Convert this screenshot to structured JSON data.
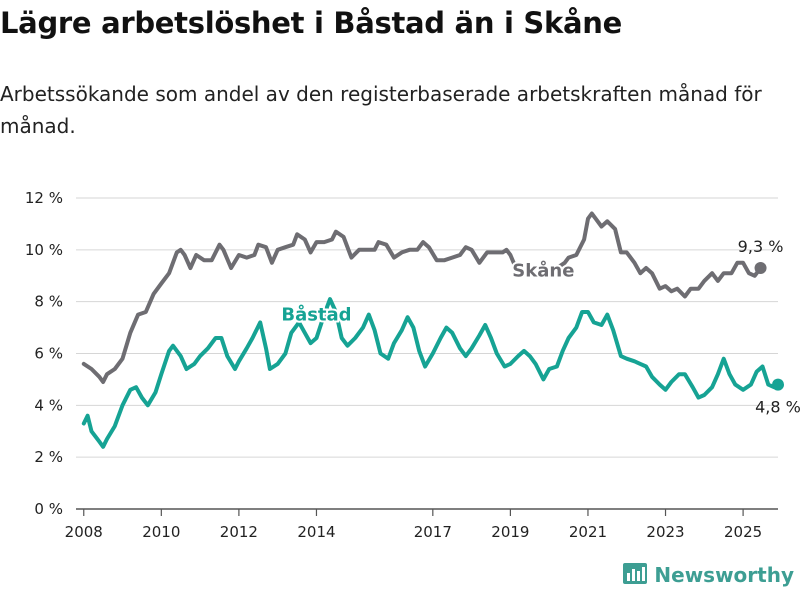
{
  "title": "Lägre arbetslöshet i Båstad än i Skåne",
  "subtitle": "Arbetssökande som andel av den registerbaserade arbetskraften månad för månad.",
  "brand": {
    "name": "Newsworthy",
    "icon": "bar-chart-logo-icon"
  },
  "colors": {
    "skane": "#6e6d72",
    "bastad": "#16a394",
    "brand": "#3d9e93"
  },
  "chart_data": {
    "type": "line",
    "title": "Lägre arbetslöshet i Båstad än i Skåne",
    "subtitle": "Arbetssökande som andel av den registerbaserade arbetskraften månad för månad.",
    "xlabel": "",
    "ylabel": "",
    "xlim": [
      2007.8,
      2025.9
    ],
    "ylim": [
      0,
      12
    ],
    "y_ticks": [
      0,
      2,
      4,
      6,
      8,
      10,
      12
    ],
    "y_tick_labels": [
      "0 %",
      "2 %",
      "4 %",
      "6 %",
      "8 %",
      "10 %",
      "12 %"
    ],
    "x_ticks": [
      2008,
      2010,
      2012,
      2014,
      2017,
      2019,
      2021,
      2023,
      2025
    ],
    "x_tick_labels": [
      "2008",
      "2010",
      "2012",
      "2014",
      "2017",
      "2019",
      "2021",
      "2023",
      "2025"
    ],
    "grid": true,
    "series": [
      {
        "name": "Skåne",
        "color": "#6e6d72",
        "end_label": "9,3 %",
        "points": [
          [
            2008.0,
            5.6
          ],
          [
            2008.2,
            5.4
          ],
          [
            2008.4,
            5.1
          ],
          [
            2008.5,
            4.9
          ],
          [
            2008.6,
            5.2
          ],
          [
            2008.8,
            5.4
          ],
          [
            2009.0,
            5.8
          ],
          [
            2009.2,
            6.8
          ],
          [
            2009.4,
            7.5
          ],
          [
            2009.6,
            7.6
          ],
          [
            2009.8,
            8.3
          ],
          [
            2010.0,
            8.7
          ],
          [
            2010.2,
            9.1
          ],
          [
            2010.4,
            9.9
          ],
          [
            2010.5,
            10.0
          ],
          [
            2010.6,
            9.8
          ],
          [
            2010.75,
            9.3
          ],
          [
            2010.9,
            9.8
          ],
          [
            2011.1,
            9.6
          ],
          [
            2011.3,
            9.6
          ],
          [
            2011.5,
            10.2
          ],
          [
            2011.6,
            10.0
          ],
          [
            2011.8,
            9.3
          ],
          [
            2012.0,
            9.8
          ],
          [
            2012.2,
            9.7
          ],
          [
            2012.4,
            9.8
          ],
          [
            2012.5,
            10.2
          ],
          [
            2012.7,
            10.1
          ],
          [
            2012.85,
            9.5
          ],
          [
            2013.0,
            10.0
          ],
          [
            2013.2,
            10.1
          ],
          [
            2013.4,
            10.2
          ],
          [
            2013.5,
            10.6
          ],
          [
            2013.7,
            10.4
          ],
          [
            2013.85,
            9.9
          ],
          [
            2014.0,
            10.3
          ],
          [
            2014.2,
            10.3
          ],
          [
            2014.4,
            10.4
          ],
          [
            2014.5,
            10.7
          ],
          [
            2014.7,
            10.5
          ],
          [
            2014.9,
            9.7
          ],
          [
            2015.1,
            10.0
          ],
          [
            2015.3,
            10.0
          ],
          [
            2015.5,
            10.0
          ],
          [
            2015.6,
            10.3
          ],
          [
            2015.8,
            10.2
          ],
          [
            2016.0,
            9.7
          ],
          [
            2016.2,
            9.9
          ],
          [
            2016.4,
            10.0
          ],
          [
            2016.6,
            10.0
          ],
          [
            2016.75,
            10.3
          ],
          [
            2016.9,
            10.1
          ],
          [
            2017.1,
            9.6
          ],
          [
            2017.3,
            9.6
          ],
          [
            2017.5,
            9.7
          ],
          [
            2017.7,
            9.8
          ],
          [
            2017.85,
            10.1
          ],
          [
            2018.0,
            10.0
          ],
          [
            2018.2,
            9.5
          ],
          [
            2018.4,
            9.9
          ],
          [
            2018.6,
            9.9
          ],
          [
            2018.8,
            9.9
          ],
          [
            2018.9,
            10.0
          ],
          [
            2019.0,
            9.8
          ],
          [
            2019.2,
            9.1
          ],
          [
            2019.35,
            9.3
          ],
          [
            2019.5,
            9.3
          ]
        ],
        "points_b": [
          [
            2020.2,
            9.3
          ],
          [
            2020.4,
            9.5
          ],
          [
            2020.5,
            9.7
          ],
          [
            2020.7,
            9.8
          ],
          [
            2020.9,
            10.4
          ],
          [
            2021.0,
            11.2
          ],
          [
            2021.1,
            11.4
          ],
          [
            2021.2,
            11.2
          ],
          [
            2021.35,
            10.9
          ],
          [
            2021.5,
            11.1
          ],
          [
            2021.7,
            10.8
          ],
          [
            2021.85,
            9.9
          ],
          [
            2022.0,
            9.9
          ],
          [
            2022.2,
            9.5
          ],
          [
            2022.35,
            9.1
          ],
          [
            2022.5,
            9.3
          ],
          [
            2022.65,
            9.1
          ],
          [
            2022.85,
            8.5
          ],
          [
            2023.0,
            8.6
          ],
          [
            2023.15,
            8.4
          ],
          [
            2023.3,
            8.5
          ],
          [
            2023.5,
            8.2
          ],
          [
            2023.65,
            8.5
          ],
          [
            2023.85,
            8.5
          ],
          [
            2024.0,
            8.8
          ],
          [
            2024.2,
            9.1
          ],
          [
            2024.35,
            8.8
          ],
          [
            2024.5,
            9.1
          ],
          [
            2024.7,
            9.1
          ],
          [
            2024.85,
            9.5
          ],
          [
            2025.0,
            9.5
          ],
          [
            2025.15,
            9.1
          ],
          [
            2025.3,
            9.0
          ],
          [
            2025.45,
            9.3
          ]
        ]
      },
      {
        "name": "Båstad",
        "color": "#16a394",
        "end_label": "4,8 %",
        "points": [
          [
            2008.0,
            3.3
          ],
          [
            2008.1,
            3.6
          ],
          [
            2008.2,
            3.0
          ],
          [
            2008.4,
            2.6
          ],
          [
            2008.5,
            2.4
          ],
          [
            2008.6,
            2.7
          ],
          [
            2008.8,
            3.2
          ],
          [
            2009.0,
            4.0
          ],
          [
            2009.2,
            4.6
          ],
          [
            2009.35,
            4.7
          ],
          [
            2009.5,
            4.3
          ],
          [
            2009.65,
            4.0
          ],
          [
            2009.85,
            4.5
          ],
          [
            2010.0,
            5.2
          ],
          [
            2010.2,
            6.1
          ],
          [
            2010.3,
            6.3
          ],
          [
            2010.5,
            5.9
          ],
          [
            2010.65,
            5.4
          ],
          [
            2010.85,
            5.6
          ],
          [
            2011.0,
            5.9
          ],
          [
            2011.2,
            6.2
          ],
          [
            2011.4,
            6.6
          ],
          [
            2011.55,
            6.6
          ],
          [
            2011.7,
            5.9
          ],
          [
            2011.9,
            5.4
          ],
          [
            2012.0,
            5.7
          ],
          [
            2012.2,
            6.2
          ],
          [
            2012.35,
            6.6
          ],
          [
            2012.55,
            7.2
          ],
          [
            2012.7,
            6.2
          ],
          [
            2012.8,
            5.4
          ],
          [
            2013.0,
            5.6
          ],
          [
            2013.2,
            6.0
          ],
          [
            2013.35,
            6.8
          ],
          [
            2013.55,
            7.2
          ],
          [
            2013.7,
            6.8
          ],
          [
            2013.85,
            6.4
          ],
          [
            2014.0,
            6.6
          ],
          [
            2014.2,
            7.5
          ],
          [
            2014.35,
            8.1
          ],
          [
            2014.5,
            7.6
          ],
          [
            2014.65,
            6.6
          ],
          [
            2014.8,
            6.3
          ],
          [
            2015.0,
            6.6
          ],
          [
            2015.2,
            7.0
          ],
          [
            2015.35,
            7.5
          ],
          [
            2015.5,
            6.9
          ],
          [
            2015.65,
            6.0
          ],
          [
            2015.85,
            5.8
          ],
          [
            2016.0,
            6.4
          ],
          [
            2016.2,
            6.9
          ],
          [
            2016.35,
            7.4
          ],
          [
            2016.5,
            7.0
          ],
          [
            2016.65,
            6.1
          ],
          [
            2016.8,
            5.5
          ],
          [
            2017.0,
            6.0
          ],
          [
            2017.2,
            6.6
          ],
          [
            2017.35,
            7.0
          ],
          [
            2017.5,
            6.8
          ],
          [
            2017.7,
            6.2
          ],
          [
            2017.85,
            5.9
          ],
          [
            2018.0,
            6.2
          ],
          [
            2018.2,
            6.7
          ],
          [
            2018.35,
            7.1
          ],
          [
            2018.5,
            6.6
          ],
          [
            2018.65,
            6.0
          ],
          [
            2018.85,
            5.5
          ],
          [
            2019.0,
            5.6
          ],
          [
            2019.2,
            5.9
          ],
          [
            2019.35,
            6.1
          ],
          [
            2019.5,
            5.9
          ],
          [
            2019.65,
            5.6
          ],
          [
            2019.85,
            5.0
          ],
          [
            2020.0,
            5.4
          ],
          [
            2020.2,
            5.5
          ],
          [
            2020.35,
            6.1
          ],
          [
            2020.5,
            6.6
          ],
          [
            2020.7,
            7.0
          ],
          [
            2020.85,
            7.6
          ],
          [
            2021.0,
            7.6
          ],
          [
            2021.15,
            7.2
          ],
          [
            2021.35,
            7.1
          ],
          [
            2021.5,
            7.5
          ],
          [
            2021.65,
            6.9
          ],
          [
            2021.85,
            5.9
          ],
          [
            2022.0,
            5.8
          ],
          [
            2022.2,
            5.7
          ],
          [
            2022.35,
            5.6
          ],
          [
            2022.5,
            5.5
          ],
          [
            2022.65,
            5.1
          ],
          [
            2022.85,
            4.8
          ],
          [
            2023.0,
            4.6
          ],
          [
            2023.15,
            4.9
          ],
          [
            2023.35,
            5.2
          ],
          [
            2023.5,
            5.2
          ],
          [
            2023.7,
            4.7
          ],
          [
            2023.85,
            4.3
          ],
          [
            2024.0,
            4.4
          ],
          [
            2024.2,
            4.7
          ],
          [
            2024.35,
            5.2
          ],
          [
            2024.5,
            5.8
          ],
          [
            2024.65,
            5.2
          ],
          [
            2024.8,
            4.8
          ],
          [
            2025.0,
            4.6
          ],
          [
            2025.2,
            4.8
          ],
          [
            2025.35,
            5.3
          ],
          [
            2025.5,
            5.5
          ],
          [
            2025.65,
            4.8
          ],
          [
            2025.8,
            4.7
          ],
          [
            2025.9,
            4.8
          ]
        ]
      }
    ]
  }
}
